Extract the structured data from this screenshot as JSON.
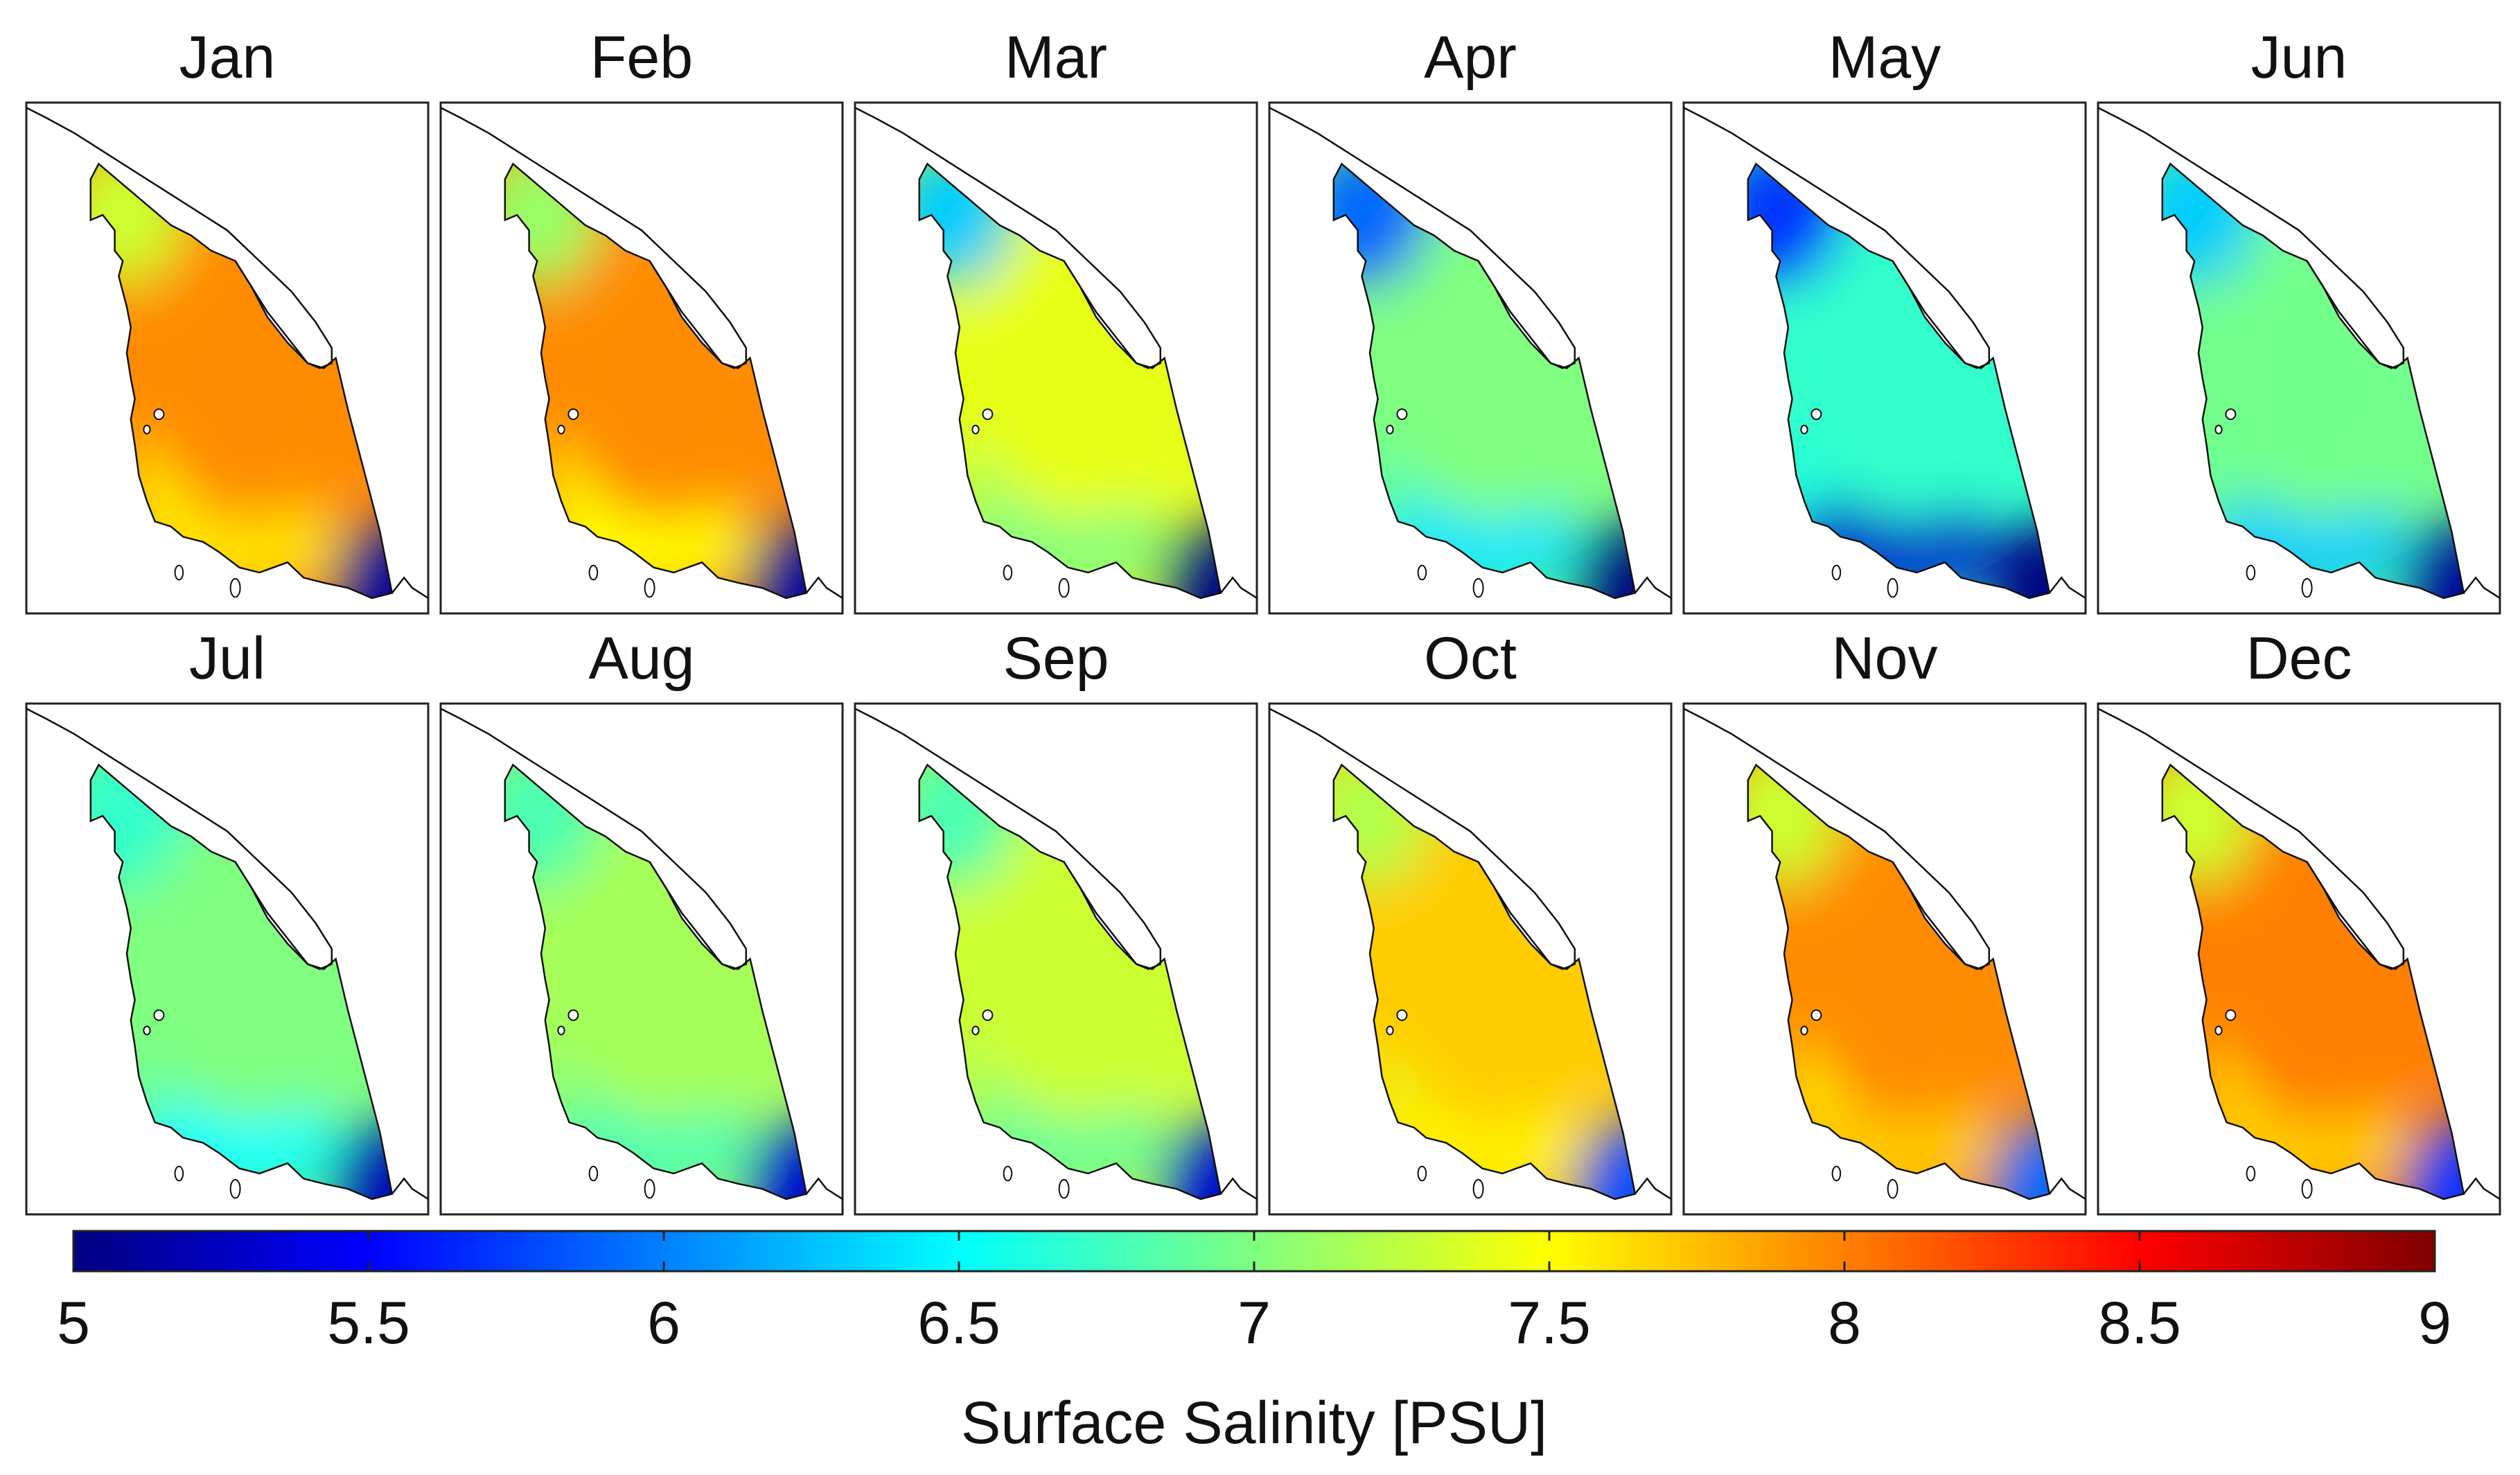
{
  "months": [
    {
      "label": "Jan",
      "fields": {
        "center": 7.95,
        "north": 7.3,
        "south": 7.6,
        "corner": 5.1,
        "edge": 7.5
      }
    },
    {
      "label": "Feb",
      "fields": {
        "center": 7.95,
        "north": 7.1,
        "south": 7.5,
        "corner": 5.1,
        "edge": 7.5
      }
    },
    {
      "label": "Mar",
      "fields": {
        "center": 7.4,
        "north": 6.3,
        "south": 7.0,
        "corner": 5.0,
        "edge": 7.1
      }
    },
    {
      "label": "Apr",
      "fields": {
        "center": 7.0,
        "north": 5.9,
        "south": 6.4,
        "corner": 5.0,
        "edge": 6.8
      }
    },
    {
      "label": "May",
      "fields": {
        "center": 6.7,
        "north": 5.7,
        "south": 5.3,
        "corner": 5.0,
        "edge": 6.6
      }
    },
    {
      "label": "Jun",
      "fields": {
        "center": 6.95,
        "north": 6.3,
        "south": 6.3,
        "corner": 5.1,
        "edge": 6.9
      }
    },
    {
      "label": "Jul",
      "fields": {
        "center": 7.0,
        "north": 6.7,
        "south": 6.5,
        "corner": 5.2,
        "edge": 6.9
      }
    },
    {
      "label": "Aug",
      "fields": {
        "center": 7.15,
        "north": 6.8,
        "south": 6.8,
        "corner": 5.3,
        "edge": 7.0
      }
    },
    {
      "label": "Sep",
      "fields": {
        "center": 7.3,
        "north": 6.8,
        "south": 6.9,
        "corner": 5.3,
        "edge": 7.1
      }
    },
    {
      "label": "Oct",
      "fields": {
        "center": 7.7,
        "north": 7.2,
        "south": 7.55,
        "corner": 5.8,
        "edge": 7.4
      }
    },
    {
      "label": "Nov",
      "fields": {
        "center": 7.95,
        "north": 7.3,
        "south": 7.7,
        "corner": 5.9,
        "edge": 7.5
      }
    },
    {
      "label": "Dec",
      "fields": {
        "center": 8.0,
        "north": 7.3,
        "south": 7.7,
        "corner": 5.7,
        "edge": 7.6
      }
    }
  ],
  "colorbar": {
    "min": 5,
    "max": 9,
    "ticks": [
      "5",
      "5.5",
      "6",
      "6.5",
      "7",
      "7.5",
      "8",
      "8.5",
      "9"
    ],
    "label": "Surface Salinity [PSU]",
    "colormap": "jet"
  }
}
